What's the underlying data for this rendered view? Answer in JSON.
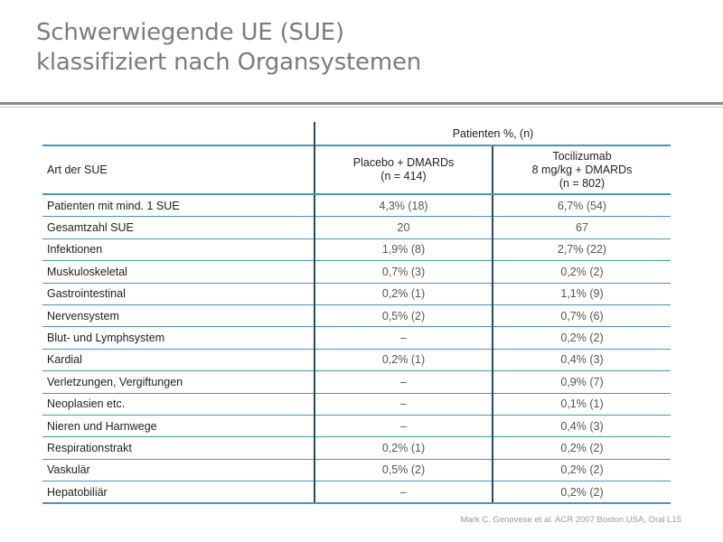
{
  "title": {
    "line1": "Schwerwiegende UE (SUE)",
    "line2": "klassifiziert nach Organsystemen"
  },
  "table": {
    "group_header": "Patienten %, (n)",
    "row_header": "Art der SUE",
    "columns": [
      {
        "line1": "Placebo + DMARDs",
        "line2": "(n = 414)",
        "line3": ""
      },
      {
        "line1": "Tocilizumab",
        "line2": "8 mg/kg + DMARDs",
        "line3": "(n = 802)"
      }
    ],
    "rows": [
      {
        "label": "Patienten mit mind. 1 SUE",
        "placebo": "4,3% (18)",
        "tocilizumab": "6,7% (54)"
      },
      {
        "label": "Gesamtzahl SUE",
        "placebo": "20",
        "tocilizumab": "67"
      },
      {
        "label": "Infektionen",
        "placebo": "1,9% (8)",
        "tocilizumab": "2,7% (22)"
      },
      {
        "label": "Muskuloskeletal",
        "placebo": "0,7% (3)",
        "tocilizumab": "0,2% (2)"
      },
      {
        "label": "Gastrointestinal",
        "placebo": "0,2% (1)",
        "tocilizumab": "1,1% (9)"
      },
      {
        "label": "Nervensystem",
        "placebo": "0,5% (2)",
        "tocilizumab": "0,7% (6)"
      },
      {
        "label": "Blut- und Lymphsystem",
        "placebo": "–",
        "tocilizumab": "0,2% (2)"
      },
      {
        "label": "Kardial",
        "placebo": "0,2% (1)",
        "tocilizumab": "0,4% (3)"
      },
      {
        "label": "Verletzungen, Vergiftungen",
        "placebo": "–",
        "tocilizumab": "0,9% (7)"
      },
      {
        "label": "Neoplasien etc.",
        "placebo": "–",
        "tocilizumab": "0,1% (1)"
      },
      {
        "label": "Nieren und Harnwege",
        "placebo": "–",
        "tocilizumab": "0,4% (3)"
      },
      {
        "label": "Respirationstrakt",
        "placebo": "0,2% (1)",
        "tocilizumab": "0,2% (2)"
      },
      {
        "label": "Vaskulär",
        "placebo": "0,5% (2)",
        "tocilizumab": "0,2% (2)"
      },
      {
        "label": "Hepatobiliär",
        "placebo": "–",
        "tocilizumab": "0,2% (2)"
      }
    ]
  },
  "footnote": "Mark C. Genovese et al. ACR 2007 Boston USA, Oral L15",
  "colors": {
    "title": "#7c7c7c",
    "row_rule": "#4a96b4",
    "column_rule": "#1f4c6b",
    "header_rule": "#8a8a8a"
  }
}
